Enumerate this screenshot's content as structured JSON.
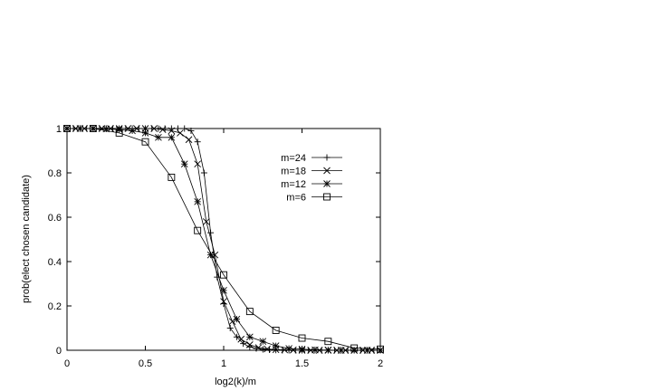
{
  "chart_data": {
    "type": "line",
    "xlabel": "log2(k)/m",
    "ylabel": "prob(elect chosen candidate)",
    "xlim": [
      0,
      2
    ],
    "ylim": [
      0,
      1
    ],
    "x_ticks": [
      {
        "value": 0,
        "label": "0"
      },
      {
        "value": 0.5,
        "label": "0.5"
      },
      {
        "value": 1,
        "label": "1"
      },
      {
        "value": 1.5,
        "label": "1.5"
      },
      {
        "value": 2,
        "label": "2"
      }
    ],
    "y_ticks": [
      {
        "value": 0,
        "label": "0"
      },
      {
        "value": 0.2,
        "label": "0.2"
      },
      {
        "value": 0.4,
        "label": "0.4"
      },
      {
        "value": 0.6,
        "label": "0.6"
      },
      {
        "value": 0.8,
        "label": "0.8"
      },
      {
        "value": 1,
        "label": "1"
      }
    ],
    "grid": false,
    "legend_position": "top-right",
    "series": [
      {
        "name": "m=24",
        "marker": "plus",
        "x": [
          0,
          0.0417,
          0.0833,
          0.125,
          0.1667,
          0.2083,
          0.25,
          0.2917,
          0.3333,
          0.375,
          0.4167,
          0.4583,
          0.5,
          0.5417,
          0.5833,
          0.625,
          0.6667,
          0.7083,
          0.75,
          0.7917,
          0.8333,
          0.875,
          0.9167,
          0.9583,
          1.0,
          1.0417,
          1.0833,
          1.125,
          1.1667,
          1.2083,
          1.25,
          1.2917,
          1.3333,
          1.375,
          1.4167,
          1.4583,
          1.5,
          1.5417,
          1.5833,
          1.625,
          1.6667,
          1.7083,
          1.75,
          1.7917,
          1.8333,
          1.875,
          1.9167,
          1.9583,
          2.0
        ],
        "y": [
          1,
          1,
          1,
          1,
          1,
          1,
          1,
          1,
          1,
          1,
          1,
          1,
          1,
          1,
          1,
          1,
          1,
          1,
          1,
          0.99,
          0.94,
          0.8,
          0.53,
          0.33,
          0.21,
          0.1,
          0.06,
          0.03,
          0.015,
          0.008,
          0.004,
          0.002,
          0.001,
          0,
          0,
          0,
          0,
          0,
          0,
          0,
          0,
          0,
          0,
          0,
          0,
          0,
          0,
          0,
          0
        ]
      },
      {
        "name": "m=18",
        "marker": "cross",
        "x": [
          0,
          0.0556,
          0.1111,
          0.1667,
          0.2222,
          0.2778,
          0.3333,
          0.3889,
          0.4444,
          0.5,
          0.5556,
          0.6111,
          0.6667,
          0.7222,
          0.7778,
          0.8333,
          0.8889,
          0.9444,
          1.0,
          1.0556,
          1.1111,
          1.1667,
          1.2222,
          1.2778,
          1.3333,
          1.3889,
          1.4444,
          1.5,
          1.5556,
          1.6111,
          1.6667,
          1.7222,
          1.7778,
          1.8333,
          1.8889,
          1.9444,
          2.0
        ],
        "y": [
          1,
          1,
          1,
          1,
          1,
          1,
          1,
          1,
          1,
          1,
          1,
          0.995,
          0.99,
          0.98,
          0.95,
          0.84,
          0.58,
          0.43,
          0.22,
          0.13,
          0.05,
          0.025,
          0.012,
          0.006,
          0.003,
          0.002,
          0.001,
          0,
          0,
          0,
          0,
          0,
          0,
          0,
          0,
          0,
          0
        ]
      },
      {
        "name": "m=12",
        "marker": "star",
        "x": [
          0,
          0.0833,
          0.1667,
          0.25,
          0.3333,
          0.4167,
          0.5,
          0.5833,
          0.6667,
          0.75,
          0.8333,
          0.9167,
          1.0,
          1.0833,
          1.1667,
          1.25,
          1.3333,
          1.4167,
          1.5,
          1.5833,
          1.6667,
          1.75,
          1.8333,
          1.9167,
          2.0
        ],
        "y": [
          1,
          1,
          1,
          0.998,
          0.995,
          0.99,
          0.98,
          0.96,
          0.96,
          0.84,
          0.67,
          0.43,
          0.27,
          0.14,
          0.06,
          0.04,
          0.02,
          0.008,
          0.005,
          0.002,
          0.001,
          0,
          0,
          0,
          0
        ]
      },
      {
        "name": "m=6",
        "marker": "square",
        "x": [
          0,
          0.1667,
          0.3333,
          0.5,
          0.6667,
          0.8333,
          1.0,
          1.1667,
          1.3333,
          1.5,
          1.6667,
          1.8333,
          2.0
        ],
        "y": [
          1,
          1,
          0.98,
          0.94,
          0.78,
          0.54,
          0.34,
          0.175,
          0.09,
          0.055,
          0.04,
          0.01,
          0.005
        ]
      }
    ]
  }
}
